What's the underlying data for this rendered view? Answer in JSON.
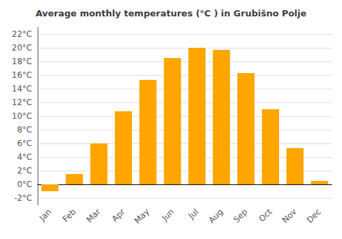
{
  "chart_data": {
    "type": "bar",
    "title": "Average monthly temperatures (°C ) in Grubišno Polje",
    "categories": [
      "Jan",
      "Feb",
      "Mar",
      "Apr",
      "May",
      "Jun",
      "Jul",
      "Aug",
      "Sep",
      "Oct",
      "Nov",
      "Dec"
    ],
    "values": [
      -1.0,
      1.5,
      6.0,
      10.7,
      15.3,
      18.5,
      20.0,
      19.7,
      16.3,
      11.0,
      5.3,
      0.5
    ],
    "color": "#FFA500",
    "ylim": [
      -3,
      23
    ],
    "yticks": [
      {
        "value": -2,
        "label": "-2°C"
      },
      {
        "value": 0,
        "label": "0°C"
      },
      {
        "value": 2,
        "label": "2°C"
      },
      {
        "value": 4,
        "label": "4°C"
      },
      {
        "value": 6,
        "label": "6°C"
      },
      {
        "value": 8,
        "label": "8°C"
      },
      {
        "value": 10,
        "label": "10°C"
      },
      {
        "value": 12,
        "label": "12°C"
      },
      {
        "value": 14,
        "label": "14°C"
      },
      {
        "value": 16,
        "label": "16°C"
      },
      {
        "value": 18,
        "label": "18°C"
      },
      {
        "value": 20,
        "label": "20°C"
      },
      {
        "value": 22,
        "label": "22°C"
      }
    ],
    "grid": true
  }
}
